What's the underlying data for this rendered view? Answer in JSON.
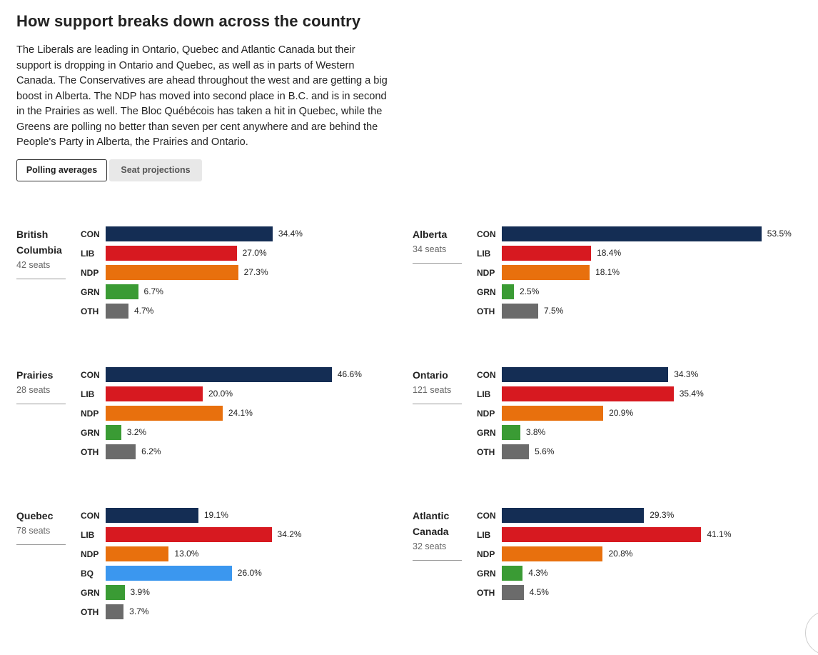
{
  "header": {
    "title": "How support breaks down across the country",
    "description": "The Liberals are leading in Ontario, Quebec and Atlantic Canada but their support is dropping in Ontario and Quebec, as well as in parts of Western Canada. The Conservatives are ahead throughout the west and are getting a big boost in Alberta. The NDP has moved into second place in B.C. and is in second in the Prairies as well. The Bloc Québécois has taken a hit in Quebec, while the Greens are polling no better than seven per cent anywhere and are behind the People's Party in Alberta, the Prairies and Ontario."
  },
  "tabs": [
    {
      "label": "Polling averages",
      "active": true
    },
    {
      "label": "Seat projections",
      "active": false
    }
  ],
  "colors": {
    "CON": "#142d54",
    "LIB": "#d71920",
    "NDP": "#e8700d",
    "GRN": "#3a9b34",
    "BQ": "#3b97ef",
    "OTH": "#6b6b6b"
  },
  "chart_data": [
    {
      "type": "bar",
      "region": "British Columbia",
      "seats": "42 seats",
      "categories": [
        "CON",
        "LIB",
        "NDP",
        "GRN",
        "OTH"
      ],
      "values": [
        34.4,
        27.0,
        27.3,
        6.7,
        4.7
      ],
      "labels": [
        "34.4%",
        "27.0%",
        "27.3%",
        "6.7%",
        "4.7%"
      ]
    },
    {
      "type": "bar",
      "region": "Alberta",
      "seats": "34 seats",
      "categories": [
        "CON",
        "LIB",
        "NDP",
        "GRN",
        "OTH"
      ],
      "values": [
        53.5,
        18.4,
        18.1,
        2.5,
        7.5
      ],
      "labels": [
        "53.5%",
        "18.4%",
        "18.1%",
        "2.5%",
        "7.5%"
      ]
    },
    {
      "type": "bar",
      "region": "Prairies",
      "seats": "28 seats",
      "categories": [
        "CON",
        "LIB",
        "NDP",
        "GRN",
        "OTH"
      ],
      "values": [
        46.6,
        20.0,
        24.1,
        3.2,
        6.2
      ],
      "labels": [
        "46.6%",
        "20.0%",
        "24.1%",
        "3.2%",
        "6.2%"
      ]
    },
    {
      "type": "bar",
      "region": "Ontario",
      "seats": "121 seats",
      "categories": [
        "CON",
        "LIB",
        "NDP",
        "GRN",
        "OTH"
      ],
      "values": [
        34.3,
        35.4,
        20.9,
        3.8,
        5.6
      ],
      "labels": [
        "34.3%",
        "35.4%",
        "20.9%",
        "3.8%",
        "5.6%"
      ]
    },
    {
      "type": "bar",
      "region": "Quebec",
      "seats": "78 seats",
      "categories": [
        "CON",
        "LIB",
        "NDP",
        "BQ",
        "GRN",
        "OTH"
      ],
      "values": [
        19.1,
        34.2,
        13.0,
        26.0,
        3.9,
        3.7
      ],
      "labels": [
        "19.1%",
        "34.2%",
        "13.0%",
        "26.0%",
        "3.9%",
        "3.7%"
      ]
    },
    {
      "type": "bar",
      "region": "Atlantic Canada",
      "seats": "32 seats",
      "categories": [
        "CON",
        "LIB",
        "NDP",
        "GRN",
        "OTH"
      ],
      "values": [
        29.3,
        41.1,
        20.8,
        4.3,
        4.5
      ],
      "labels": [
        "29.3%",
        "41.1%",
        "20.8%",
        "4.3%",
        "4.5%"
      ]
    }
  ]
}
